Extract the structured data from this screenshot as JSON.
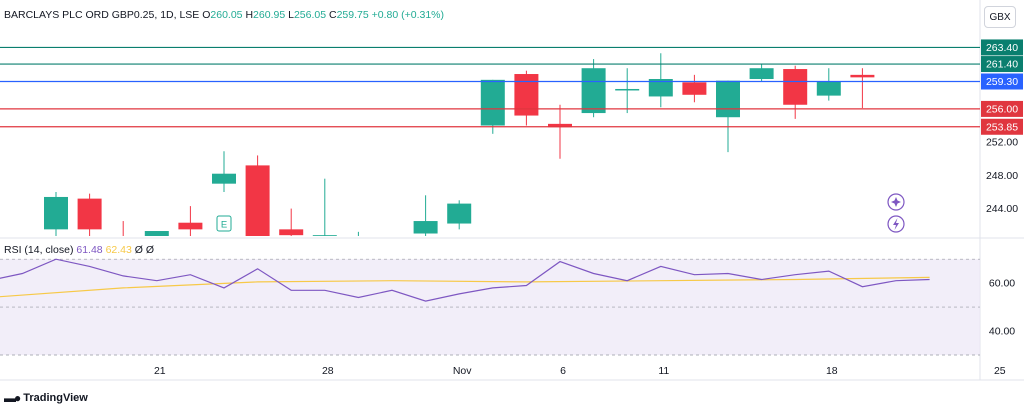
{
  "header": {
    "symbol": "BARCLAYS PLC ORD GBP0.25, 1D, LSE",
    "open_label": "O",
    "open": "260.05",
    "high_label": "H",
    "high": "260.95",
    "low_label": "L",
    "low": "256.05",
    "close_label": "C",
    "close": "259.75",
    "change": "+0.80 (+0.31%)"
  },
  "currency": "GBX",
  "rsi_header": {
    "label": "RSI (14, close)",
    "rsi_value": "61.48",
    "ma_value": "62.43",
    "z1": "Ø",
    "z2": "Ø"
  },
  "branding": "TradingView",
  "colors": {
    "up": "#22ab94",
    "down": "#f23645",
    "resistance": "#0a7f6f",
    "current": "#2962ff",
    "support": "#e0363f",
    "rsi_line": "#7e57c2",
    "rsi_ma": "#f7c948",
    "rsi_band": "#ede7f6"
  },
  "chart_data": {
    "type": "candlestick",
    "price_axis": {
      "ticks": [
        244,
        248,
        252
      ],
      "ylim": [
        240.7,
        265.5
      ]
    },
    "x_ticks": [
      {
        "label": "21",
        "index": 3
      },
      {
        "label": "28",
        "index": 8
      },
      {
        "label": "Nov",
        "index": 12
      },
      {
        "label": "6",
        "index": 15
      },
      {
        "label": "11",
        "index": 18
      },
      {
        "label": "18",
        "index": 23
      },
      {
        "label": "25",
        "index": 28
      }
    ],
    "candles": [
      {
        "i": 0,
        "o": 241.5,
        "h": 246.0,
        "l": 240.5,
        "c": 245.4
      },
      {
        "i": 1,
        "o": 245.2,
        "h": 245.8,
        "l": 240.0,
        "c": 241.5
      },
      {
        "i": 2,
        "o": 240.5,
        "h": 242.5,
        "l": 239.5,
        "c": 240.2
      },
      {
        "i": 3,
        "o": 240.7,
        "h": 241.3,
        "l": 240.0,
        "c": 241.3
      },
      {
        "i": 4,
        "o": 242.3,
        "h": 244.3,
        "l": 240.0,
        "c": 241.5
      },
      {
        "i": 5,
        "o": 247.0,
        "h": 250.9,
        "l": 246.0,
        "c": 248.2
      },
      {
        "i": 6,
        "o": 249.2,
        "h": 250.4,
        "l": 240.0,
        "c": 240.5
      },
      {
        "i": 7,
        "o": 241.5,
        "h": 244.0,
        "l": 240.0,
        "c": 240.8
      },
      {
        "i": 8,
        "o": 240.6,
        "h": 247.6,
        "l": 240.0,
        "c": 240.8
      },
      {
        "i": 9,
        "o": 240.0,
        "h": 241.2,
        "l": 239.5,
        "c": 240.6
      },
      {
        "i": 10,
        "o": 240.0,
        "h": 240.7,
        "l": 239.5,
        "c": 240.4
      },
      {
        "i": 11,
        "o": 241.0,
        "h": 245.6,
        "l": 240.5,
        "c": 242.5
      },
      {
        "i": 12,
        "o": 242.2,
        "h": 245.0,
        "l": 241.5,
        "c": 244.6
      },
      {
        "i": 13,
        "o": 254.0,
        "h": 259.5,
        "l": 253.0,
        "c": 259.5
      },
      {
        "i": 14,
        "o": 260.2,
        "h": 260.6,
        "l": 254.0,
        "c": 255.2
      },
      {
        "i": 15,
        "o": 254.2,
        "h": 256.5,
        "l": 250.0,
        "c": 253.8
      },
      {
        "i": 16,
        "o": 255.5,
        "h": 262.0,
        "l": 255.0,
        "c": 260.9
      },
      {
        "i": 17,
        "o": 258.4,
        "h": 260.9,
        "l": 255.5,
        "c": 258.4
      },
      {
        "i": 18,
        "o": 257.5,
        "h": 262.7,
        "l": 256.2,
        "c": 259.6
      },
      {
        "i": 19,
        "o": 259.2,
        "h": 260.1,
        "l": 256.8,
        "c": 257.7
      },
      {
        "i": 20,
        "o": 255.0,
        "h": 259.4,
        "l": 250.8,
        "c": 259.4
      },
      {
        "i": 21,
        "o": 259.6,
        "h": 261.4,
        "l": 259.3,
        "c": 260.9
      },
      {
        "i": 22,
        "o": 260.8,
        "h": 261.2,
        "l": 254.8,
        "c": 256.5
      },
      {
        "i": 23,
        "o": 257.6,
        "h": 260.9,
        "l": 257.0,
        "c": 259.3
      },
      {
        "i": 24,
        "o": 260.1,
        "h": 260.9,
        "l": 256.1,
        "c": 259.8
      }
    ],
    "levels": [
      {
        "value": 263.4,
        "label": "263.40",
        "kind": "resistance"
      },
      {
        "value": 261.4,
        "label": "261.40",
        "kind": "resistance"
      },
      {
        "value": 259.3,
        "label": "259.30",
        "kind": "current"
      },
      {
        "value": 256.0,
        "label": "256.00",
        "kind": "support"
      },
      {
        "value": 253.85,
        "label": "253.85",
        "kind": "support"
      }
    ],
    "event_marker": {
      "index": 5,
      "label": "E"
    },
    "rsi": {
      "ticks": [
        40,
        60
      ],
      "ylim": [
        30,
        78
      ],
      "band": [
        30,
        70
      ],
      "values": [
        {
          "i": -2,
          "v": 61
        },
        {
          "i": -1,
          "v": 64
        },
        {
          "i": 0,
          "v": 70
        },
        {
          "i": 1,
          "v": 67
        },
        {
          "i": 2,
          "v": 63
        },
        {
          "i": 3,
          "v": 61
        },
        {
          "i": 4,
          "v": 63.5
        },
        {
          "i": 5,
          "v": 58
        },
        {
          "i": 6,
          "v": 66
        },
        {
          "i": 7,
          "v": 57
        },
        {
          "i": 8,
          "v": 57
        },
        {
          "i": 9,
          "v": 54
        },
        {
          "i": 10,
          "v": 57
        },
        {
          "i": 11,
          "v": 52.5
        },
        {
          "i": 12,
          "v": 55.5
        },
        {
          "i": 13,
          "v": 58
        },
        {
          "i": 14,
          "v": 59
        },
        {
          "i": 15,
          "v": 69
        },
        {
          "i": 16,
          "v": 64
        },
        {
          "i": 17,
          "v": 61
        },
        {
          "i": 18,
          "v": 67
        },
        {
          "i": 19,
          "v": 63.5
        },
        {
          "i": 20,
          "v": 64
        },
        {
          "i": 21,
          "v": 61.5
        },
        {
          "i": 22,
          "v": 63.5
        },
        {
          "i": 23,
          "v": 65
        },
        {
          "i": 24,
          "v": 58.5
        },
        {
          "i": 25,
          "v": 61
        },
        {
          "i": 26,
          "v": 61.5
        }
      ],
      "ma": [
        {
          "i": -2,
          "v": 54
        },
        {
          "i": 2,
          "v": 58
        },
        {
          "i": 6,
          "v": 60.5
        },
        {
          "i": 10,
          "v": 61
        },
        {
          "i": 14,
          "v": 60.5
        },
        {
          "i": 18,
          "v": 61
        },
        {
          "i": 22,
          "v": 61.5
        },
        {
          "i": 26,
          "v": 62.4
        }
      ]
    }
  }
}
